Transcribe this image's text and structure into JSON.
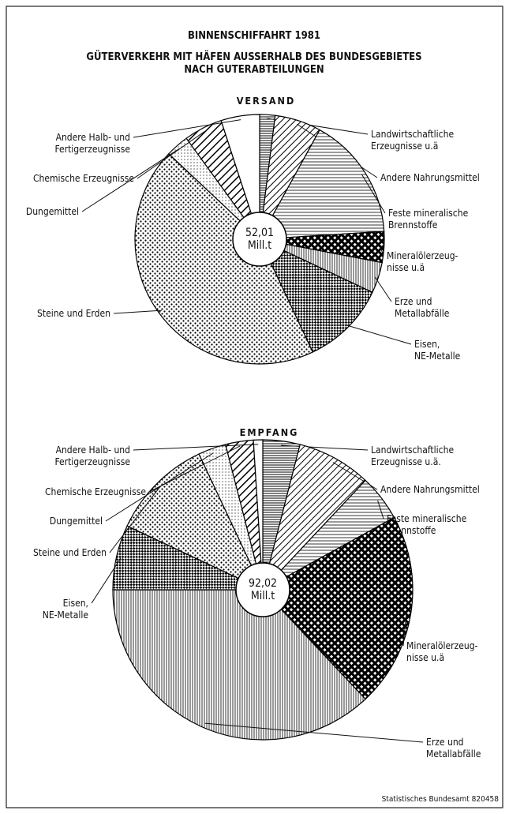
{
  "title": "BINNENSCHIFFAHRT 1981",
  "subtitle": "GÜTERVERKEHR MIT HÄFEN AUSSERHALB DES BUNDESGEBIETES\nNACH GUTERABTEILUNGEN",
  "source": "Statistisches Bundesamt 820458",
  "chart_data": [
    {
      "type": "pie",
      "title": "VERSAND",
      "center_label": "52,01\nMill.t",
      "categories": [
        "Landwirtschaftliche\nErzeugnisse u.ä",
        "Andere Nahrungsmittel",
        "Feste mineralische\nBrennstoffe",
        "Mineralölerzeug-\nnisse u.ä",
        "Erze und\nMetallabfälle",
        "Eisen,\nNE-Metalle",
        "Steine und Erden",
        "Dungemittel",
        "Chemische Erzeugnisse",
        "Andere Halb- und\nFertigerzeugnisse"
      ],
      "values": [
        2,
        6,
        16,
        4,
        4,
        11,
        44,
        3,
        5,
        5
      ]
    },
    {
      "type": "pie",
      "title": "EMPFANG",
      "center_label": "92,02\nMill.t",
      "categories": [
        "Landwirtschaftliche\nErzeugnisse u.ä.",
        "Andere Nahrungsmittel",
        "Feste mineralische\nBrennstoffe",
        "Mineralölerzeug-\nnisse u.ä",
        "Erze und\nMetallabfälle",
        "Eisen,\nNE-Metalle",
        "Steine und Erden",
        "Dungemittel",
        "Chemische Erzeugnisse",
        "Andere Halb- und\nFertigerzeugnisse"
      ],
      "values": [
        4,
        8,
        5,
        21,
        37,
        7,
        11,
        3,
        3,
        1
      ]
    }
  ]
}
